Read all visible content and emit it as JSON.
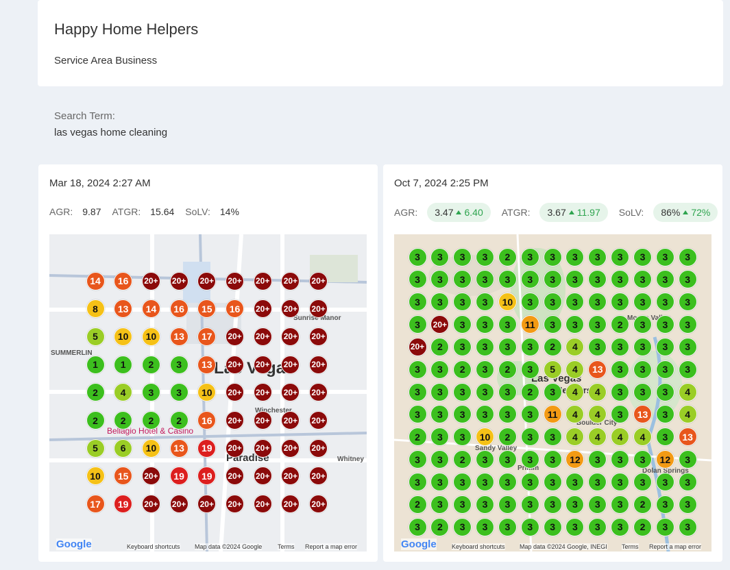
{
  "header": {
    "title": "Happy Home Helpers",
    "subtitle": "Service Area Business"
  },
  "search": {
    "label": "Search Term:",
    "term": "las vegas home cleaning"
  },
  "scans": [
    {
      "date": "Mar 18, 2024 2:27 AM",
      "metrics": [
        {
          "label": "AGR:",
          "value": "9.87"
        },
        {
          "label": "ATGR:",
          "value": "15.64"
        },
        {
          "label": "SoLV:",
          "value": "14%"
        }
      ],
      "map": {
        "labels": [
          "Las Vegas",
          "Paradise",
          "Bellagio Hotel & Casino",
          "SUMMERLIN",
          "Winchester",
          "Sunrise Manor",
          "Whitney"
        ],
        "footer": [
          "Google",
          "Keyboard shortcuts",
          "Map data ©2024 Google",
          "Terms",
          "Report a map error"
        ],
        "grid": [
          [
            "14",
            "16",
            "20+",
            "20+",
            "20+",
            "20+",
            "20+",
            "20+",
            "20+"
          ],
          [
            "8",
            "13",
            "14",
            "16",
            "15",
            "16",
            "20+",
            "20+",
            "20+"
          ],
          [
            "5",
            "10",
            "10",
            "13",
            "17",
            "20+",
            "20+",
            "20+",
            "20+"
          ],
          [
            "1",
            "1",
            "2",
            "3",
            "13",
            "20+",
            "20+",
            "20+",
            "20+"
          ],
          [
            "2",
            "4",
            "3",
            "3",
            "10",
            "20+",
            "20+",
            "20+",
            "20+"
          ],
          [
            "2",
            "2",
            "2",
            "2",
            "16",
            "20+",
            "20+",
            "20+",
            "20+"
          ],
          [
            "5",
            "6",
            "10",
            "13",
            "19",
            "20+",
            "20+",
            "20+",
            "20+"
          ],
          [
            "10",
            "15",
            "20+",
            "19",
            "19",
            "20+",
            "20+",
            "20+",
            "20+"
          ],
          [
            "17",
            "19",
            "20+",
            "20+",
            "20+",
            "20+",
            "20+",
            "20+",
            "20+"
          ]
        ]
      }
    },
    {
      "date": "Oct 7, 2024 2:25 PM",
      "metrics": [
        {
          "label": "AGR:",
          "value": "3.47",
          "change": "6.40"
        },
        {
          "label": "ATGR:",
          "value": "3.67",
          "change": "11.97"
        },
        {
          "label": "SoLV:",
          "value": "86%",
          "change": "72%"
        }
      ],
      "map": {
        "labels": [
          "Las Vegas",
          "Henderson",
          "Boulder City",
          "Sandy Valley",
          "Primm",
          "Dolan Springs",
          "Moapa Valley"
        ],
        "footer": [
          "Google",
          "Keyboard shortcuts",
          "Map data ©2024 Google, INEGI",
          "Terms",
          "Report a map error"
        ],
        "grid": [
          [
            "3",
            "3",
            "3",
            "3",
            "2",
            "3",
            "3",
            "3",
            "3",
            "3",
            "3",
            "3",
            "3"
          ],
          [
            "3",
            "3",
            "3",
            "3",
            "3",
            "3",
            "3",
            "3",
            "3",
            "3",
            "3",
            "3",
            "3"
          ],
          [
            "3",
            "3",
            "3",
            "3",
            "10",
            "3",
            "3",
            "3",
            "3",
            "3",
            "3",
            "3",
            "3"
          ],
          [
            "3",
            "20+",
            "3",
            "3",
            "3",
            "11",
            "3",
            "3",
            "3",
            "2",
            "3",
            "3",
            "3"
          ],
          [
            "20+",
            "2",
            "3",
            "3",
            "3",
            "3",
            "2",
            "4",
            "3",
            "3",
            "3",
            "3",
            "3"
          ],
          [
            "3",
            "3",
            "2",
            "3",
            "2",
            "3",
            "5",
            "4",
            "13",
            "3",
            "3",
            "3",
            "3"
          ],
          [
            "3",
            "3",
            "3",
            "3",
            "3",
            "2",
            "3",
            "4",
            "4",
            "3",
            "3",
            "3",
            "4"
          ],
          [
            "3",
            "3",
            "3",
            "3",
            "3",
            "3",
            "11",
            "4",
            "4",
            "3",
            "13",
            "3",
            "4"
          ],
          [
            "2",
            "3",
            "3",
            "10",
            "2",
            "3",
            "3",
            "4",
            "4",
            "4",
            "4",
            "3",
            "13"
          ],
          [
            "3",
            "3",
            "2",
            "3",
            "3",
            "3",
            "3",
            "12",
            "3",
            "3",
            "3",
            "12",
            "3"
          ],
          [
            "3",
            "3",
            "3",
            "3",
            "3",
            "3",
            "3",
            "3",
            "3",
            "3",
            "3",
            "3",
            "3"
          ],
          [
            "2",
            "3",
            "3",
            "3",
            "3",
            "3",
            "3",
            "3",
            "3",
            "3",
            "2",
            "3",
            "3"
          ],
          [
            "3",
            "2",
            "3",
            "3",
            "3",
            "3",
            "3",
            "3",
            "3",
            "3",
            "2",
            "3",
            "3"
          ]
        ]
      }
    }
  ]
}
